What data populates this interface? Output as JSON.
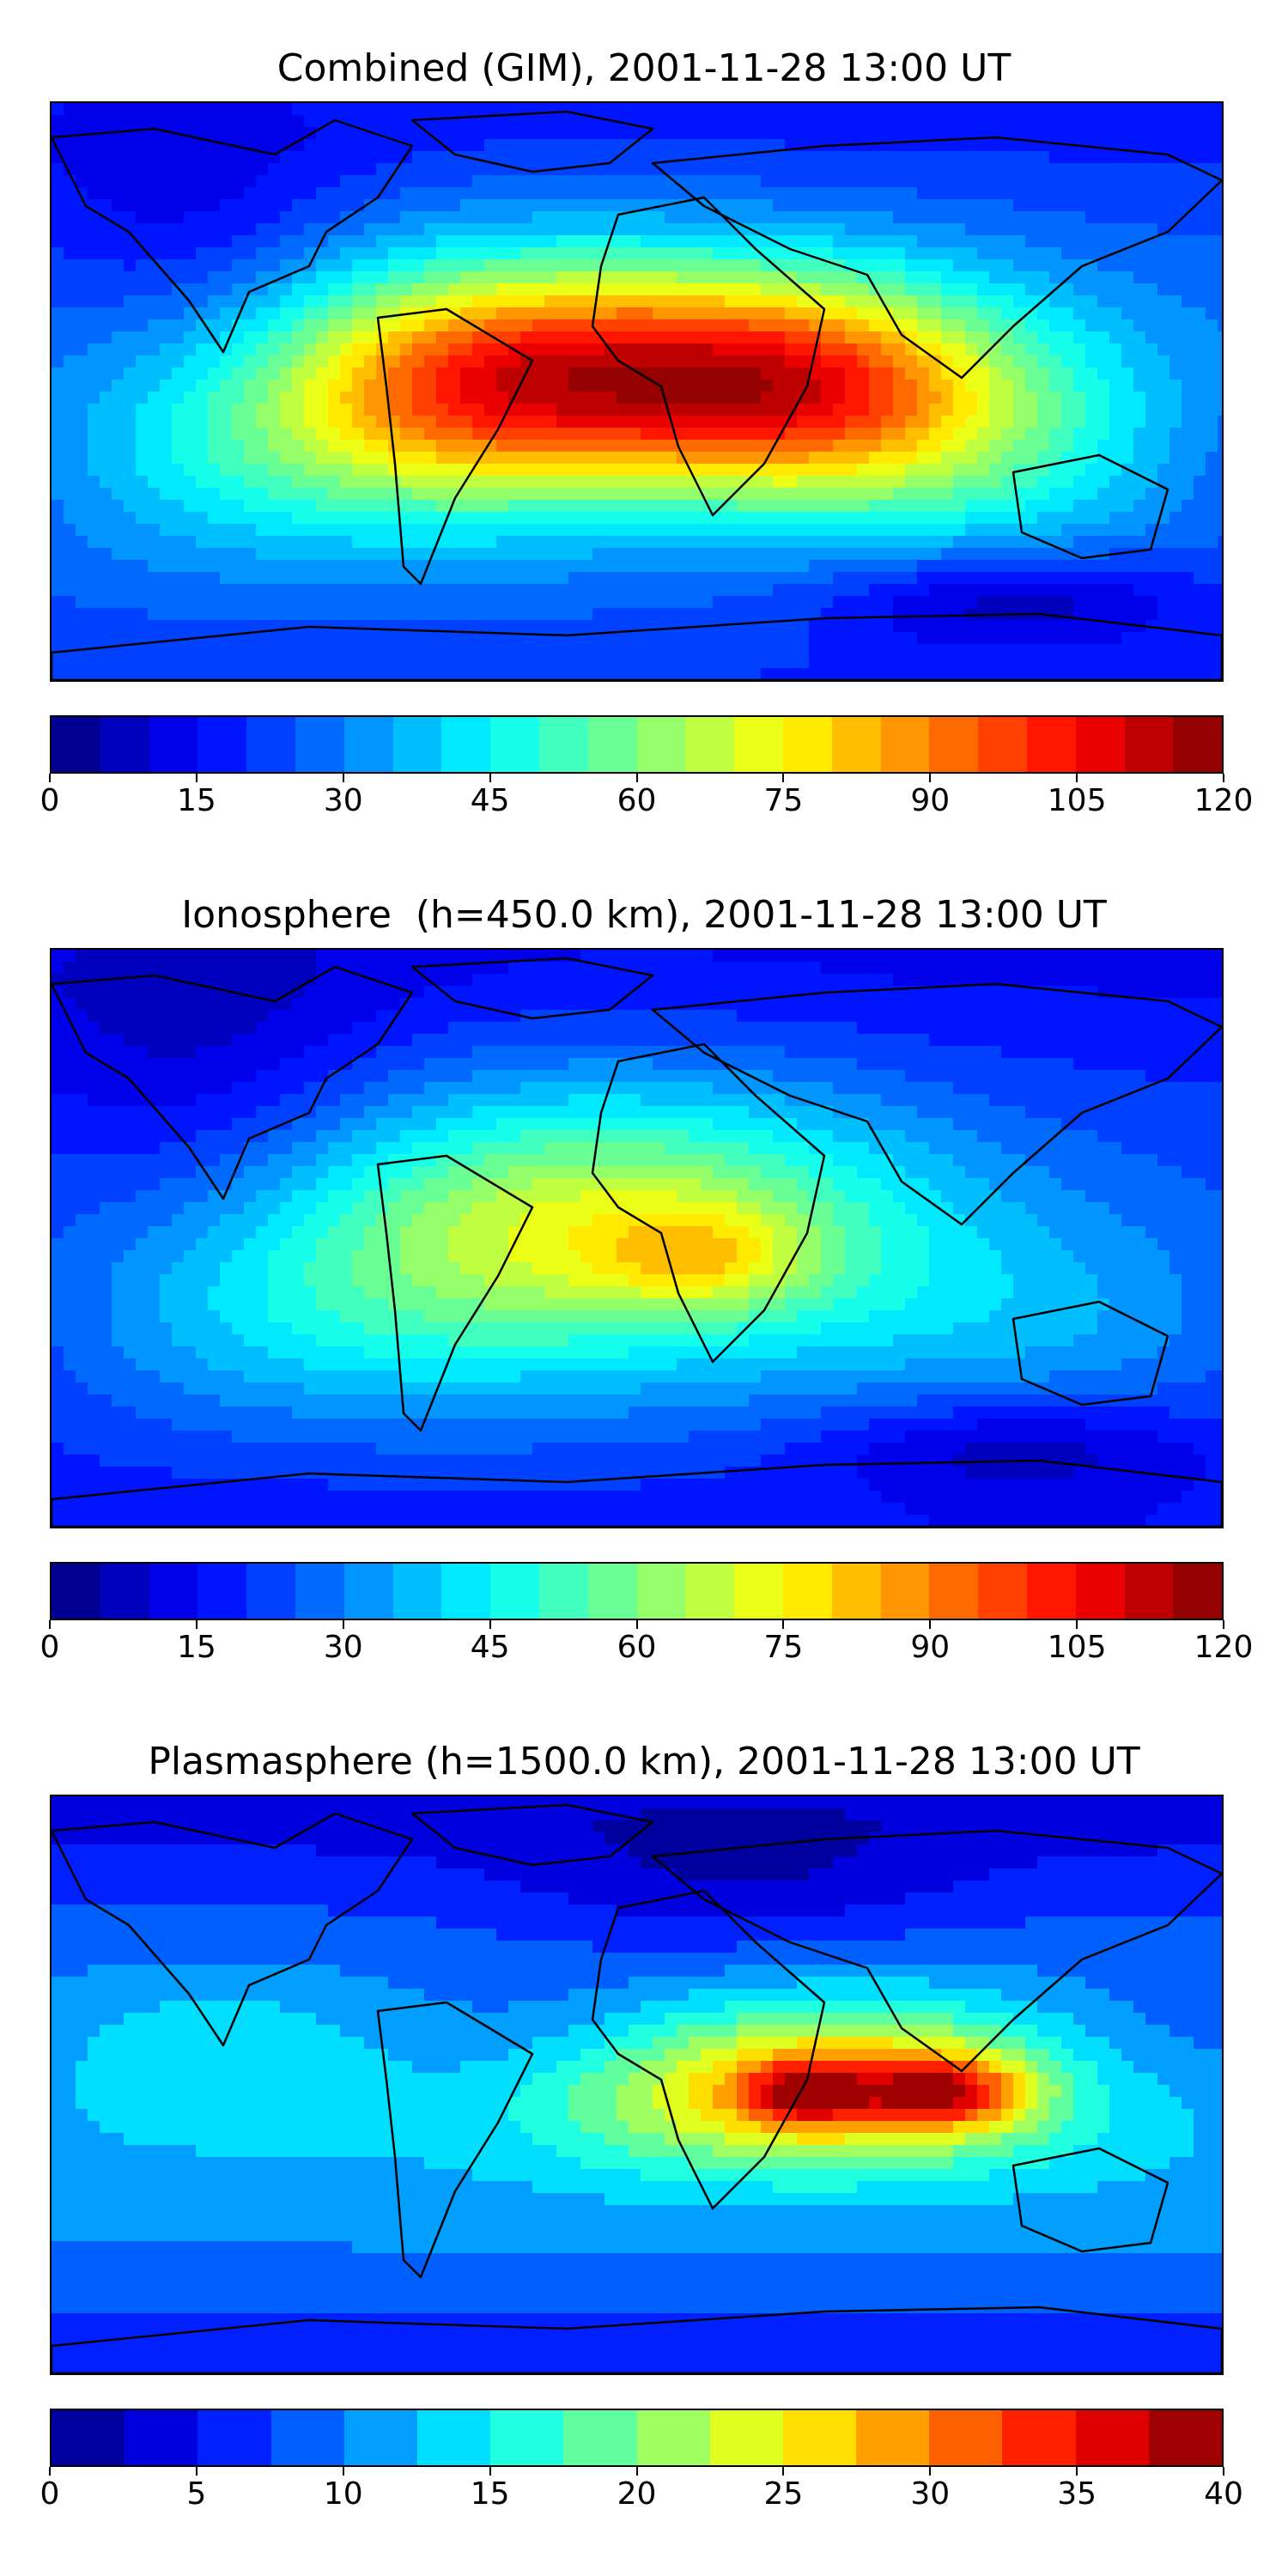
{
  "panels": [
    {
      "title": "Combined (GIM), 2001-11-28 13:00 UT",
      "field": "combined",
      "colorbar_ticks": [
        "0",
        "15",
        "30",
        "45",
        "60",
        "75",
        "90",
        "105",
        "120"
      ],
      "colorbar_range": [
        0,
        120
      ],
      "colorbar_levels": 24
    },
    {
      "title": "Ionosphere  (h=450.0 km), 2001-11-28 13:00 UT",
      "field": "ionosphere",
      "colorbar_ticks": [
        "0",
        "15",
        "30",
        "45",
        "60",
        "75",
        "90",
        "105",
        "120"
      ],
      "colorbar_range": [
        0,
        120
      ],
      "colorbar_levels": 24
    },
    {
      "title": "Plasmasphere (h=1500.0 km), 2001-11-28 13:00 UT",
      "field": "plasmasphere",
      "colorbar_ticks": [
        "0",
        "5",
        "10",
        "15",
        "20",
        "25",
        "30",
        "35",
        "40"
      ],
      "colorbar_range": [
        0,
        40
      ],
      "colorbar_levels": 16
    }
  ],
  "colormap": "jet"
}
